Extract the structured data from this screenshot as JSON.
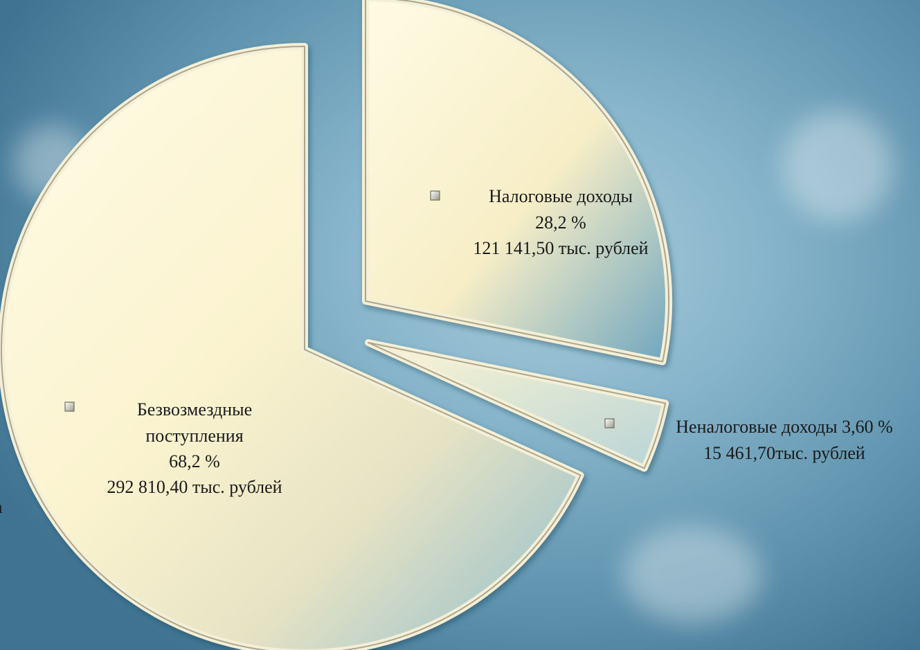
{
  "chart_data": {
    "type": "pie",
    "exploded": true,
    "slices": [
      {
        "name": "Налоговые доходы",
        "percent_label": "28,2 %",
        "amount_label": "121 141,50 тыс. рублей",
        "percent": 28.2,
        "value": 121141.5
      },
      {
        "name": "Неналоговые доходы 3,60 %",
        "percent_label": "",
        "amount_label": "15 461,70тыс. рублей",
        "percent": 3.6,
        "value": 15461.7
      },
      {
        "name_line1": "Безвозмездные",
        "name_line2": "поступления",
        "percent_label": "68,2 %",
        "amount_label": "292 810,40 тыс. рублей",
        "percent": 68.2,
        "value": 292810.4
      }
    ],
    "colors": {
      "slice_fill_light": "#fdf7d9",
      "slice_fill_mid": "#f3e9bd",
      "slice_fill_blue": "#7fb2c8",
      "slice_edge": "#d8d0a8",
      "marker": "#c9c9b8"
    },
    "legend": "in-slice labels"
  },
  "stray_text": "a"
}
